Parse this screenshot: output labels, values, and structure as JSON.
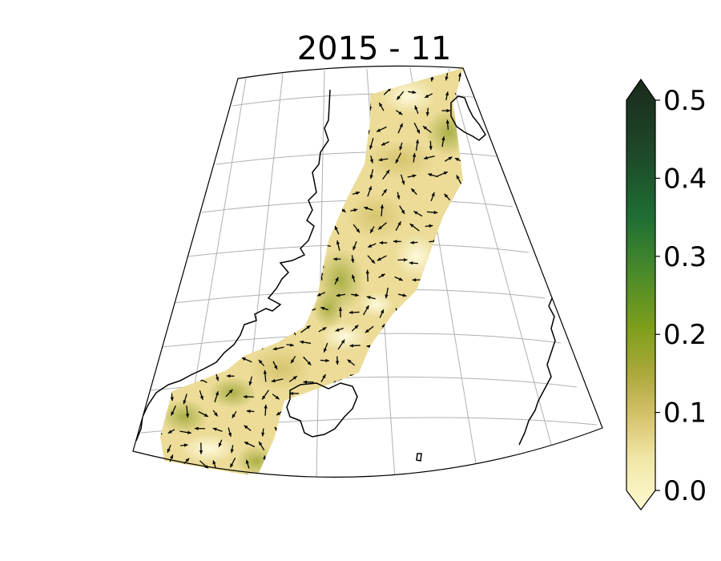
{
  "title": "2015 - 11",
  "colorbar": {
    "min": 0.0,
    "max": 0.5,
    "extend": "both",
    "ticks": [
      "0.0",
      "0.1",
      "0.2",
      "0.3",
      "0.4",
      "0.5"
    ],
    "stops": [
      "#fffad0",
      "#f0e6a6",
      "#d4c26a",
      "#aaa83a",
      "#7f9f1a",
      "#4a8a2a",
      "#1e6e34",
      "#1e4a2a",
      "#1a2a1c"
    ]
  },
  "map": {
    "projection": "lambert-conformal",
    "graticule": true,
    "coastlines": true,
    "field_colors": [
      "#f7efb0",
      "#eadb95",
      "#d8c76e",
      "#c3b85a",
      "#9fa83a"
    ],
    "arrow_color": "#000000"
  }
}
